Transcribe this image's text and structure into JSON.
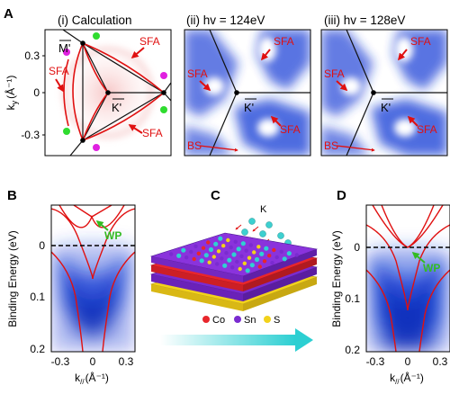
{
  "panel_letters": {
    "a": "A",
    "b": "B",
    "c": "C",
    "d": "D"
  },
  "panel_a": {
    "titles": [
      "(i) Calculation",
      "(ii) hv = 124eV",
      "(iii) hv = 128eV"
    ],
    "ylabel": "k",
    "ylabel_sub": "y",
    "ylabel_unit": "(Å⁻¹)",
    "yticks": [
      "0.3",
      "0",
      "-0.3"
    ],
    "point_m": "M'",
    "point_k": "K'",
    "sfa": "SFA",
    "bs": "BS"
  },
  "panel_b": {
    "ylabel": "Binding Energy (eV)",
    "yticks": [
      "0",
      "0.1",
      "0.2"
    ],
    "xticks": [
      "-0.3",
      "0",
      "0.3"
    ],
    "xlabel": "k",
    "xlabel_sub": "//",
    "xlabel_unit": "(Å⁻¹)",
    "wp": "WP"
  },
  "panel_c": {
    "k_label": "K",
    "legend": [
      "Co",
      "Sn",
      "S"
    ],
    "colors": {
      "Co": "#e8262c",
      "Sn": "#7a2bd0",
      "S": "#f2d21b",
      "arrow": "#2fd0d2"
    }
  },
  "panel_d": {
    "ylabel": "Binding Energy (eV)",
    "yticks": [
      "0",
      "0.1",
      "0.2"
    ],
    "xticks": [
      "-0.3",
      "0",
      "0.3"
    ],
    "xlabel": "k",
    "xlabel_sub": "//",
    "xlabel_unit": "(Å⁻¹)",
    "wp": "WP"
  },
  "colors": {
    "label_red": "#e01010",
    "wp_green": "#33bb22",
    "arpes_blue": "#1a3fd6"
  }
}
